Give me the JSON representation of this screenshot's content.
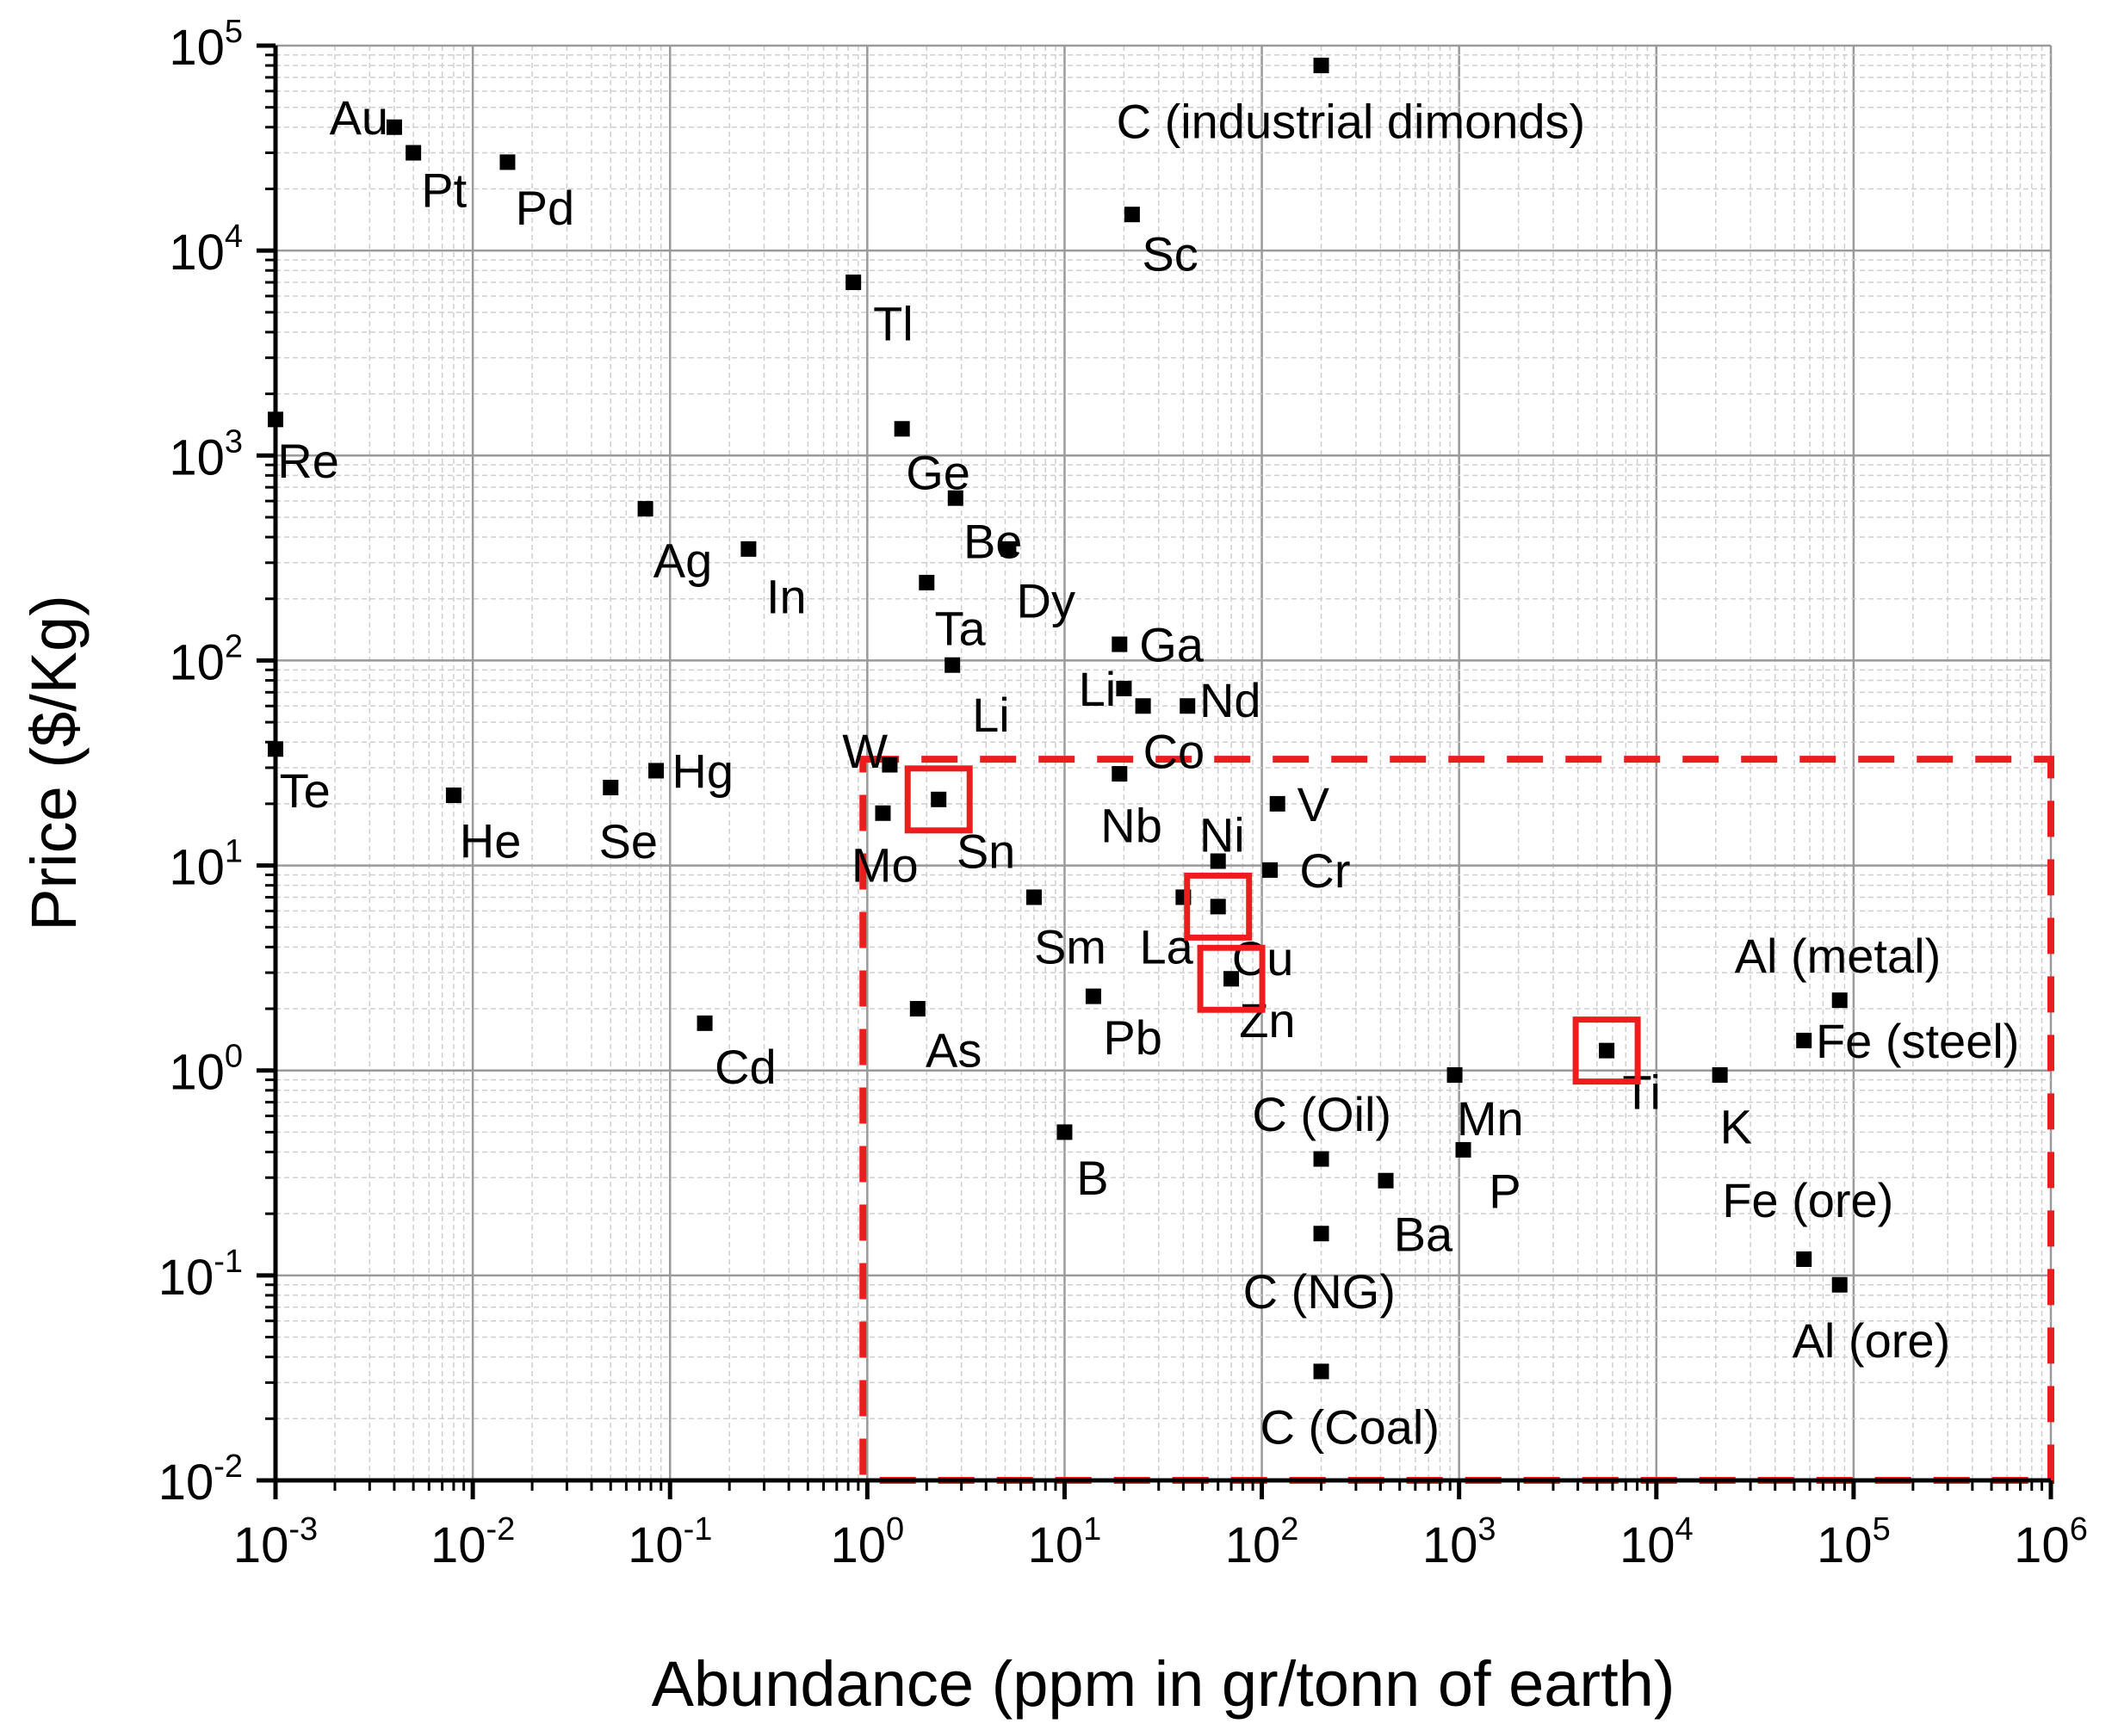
{
  "chart_data": {
    "type": "scatter",
    "title": "",
    "xlabel": "Abundance (ppm in gr/tonn of earth)",
    "ylabel": "Price ($/Kg)",
    "xscale": "log",
    "yscale": "log",
    "xlim": [
      0.001,
      1000000
    ],
    "ylim": [
      0.01,
      100000
    ],
    "grid": true,
    "x_tick_exponents": [
      -3,
      -2,
      -1,
      0,
      1,
      2,
      3,
      4,
      5,
      6
    ],
    "y_tick_exponents": [
      -2,
      -1,
      0,
      1,
      2,
      3,
      4,
      5
    ],
    "tick_base": "10",
    "points": [
      {
        "label": "Au",
        "x": 0.004,
        "y": 40000,
        "anchor": "end",
        "ldx": -0.03,
        "ldy": 0.05
      },
      {
        "label": "Pt",
        "x": 0.005,
        "y": 30000,
        "anchor": "start",
        "ldx": 0.04,
        "ldy": -0.18
      },
      {
        "label": "Pd",
        "x": 0.015,
        "y": 27000,
        "anchor": "start",
        "ldx": 0.04,
        "ldy": -0.22
      },
      {
        "label": "C (industrial dimonds)",
        "x": 200,
        "y": 80000,
        "anchor": "middle",
        "ldx": 0.15,
        "ldy": -0.27
      },
      {
        "label": "Sc",
        "x": 22,
        "y": 15000,
        "anchor": "start",
        "ldx": 0.05,
        "ldy": -0.19
      },
      {
        "label": "Tl",
        "x": 0.85,
        "y": 7000,
        "anchor": "start",
        "ldx": 0.1,
        "ldy": -0.2
      },
      {
        "label": "Re",
        "x": 0.001,
        "y": 1500,
        "anchor": "start",
        "ldx": 0.01,
        "ldy": -0.2
      },
      {
        "label": "Ge",
        "x": 1.5,
        "y": 1350,
        "anchor": "start",
        "ldx": 0.02,
        "ldy": -0.21
      },
      {
        "label": "Be",
        "x": 2.8,
        "y": 620,
        "anchor": "start",
        "ldx": 0.04,
        "ldy": -0.21
      },
      {
        "label": "Ag",
        "x": 0.075,
        "y": 550,
        "anchor": "start",
        "ldx": 0.04,
        "ldy": -0.25
      },
      {
        "label": "Dy",
        "x": 5.2,
        "y": 350,
        "anchor": "start",
        "ldx": 0.04,
        "ldy": -0.25
      },
      {
        "label": "In",
        "x": 0.25,
        "y": 350,
        "anchor": "start",
        "ldx": 0.09,
        "ldy": -0.23
      },
      {
        "label": "Ta",
        "x": 2,
        "y": 240,
        "anchor": "start",
        "ldx": 0.04,
        "ldy": -0.22
      },
      {
        "label": "Ga",
        "x": 19,
        "y": 120,
        "anchor": "start",
        "ldx": 0.1,
        "ldy": 0.0
      },
      {
        "label": "Li",
        "x": 2.7,
        "y": 95,
        "anchor": "start",
        "ldx": 0.1,
        "ldy": -0.24
      },
      {
        "label": "Li",
        "x": 20,
        "y": 73,
        "anchor": "end",
        "ldx": -0.04,
        "ldy": 0.0
      },
      {
        "label": "Nd",
        "x": 42,
        "y": 60,
        "anchor": "start",
        "ldx": 0.06,
        "ldy": 0.03
      },
      {
        "label": "Co",
        "x": 25,
        "y": 60,
        "anchor": "start",
        "ldx": 0.0,
        "ldy": -0.22
      },
      {
        "label": "W",
        "x": 1.3,
        "y": 31,
        "anchor": "end",
        "ldx": -0.01,
        "ldy": 0.07
      },
      {
        "label": "Te",
        "x": 0.001,
        "y": 37,
        "anchor": "start",
        "ldx": 0.02,
        "ldy": -0.2
      },
      {
        "label": "Hg",
        "x": 0.085,
        "y": 29,
        "anchor": "start",
        "ldx": 0.08,
        "ldy": 0.0
      },
      {
        "label": "Nb",
        "x": 19,
        "y": 28,
        "anchor": "middle",
        "ldx": 0.06,
        "ldy": -0.25
      },
      {
        "label": "Se",
        "x": 0.05,
        "y": 24,
        "anchor": "start",
        "ldx": -0.06,
        "ldy": -0.26
      },
      {
        "label": "He",
        "x": 0.008,
        "y": 22,
        "anchor": "start",
        "ldx": 0.03,
        "ldy": -0.22
      },
      {
        "label": "Sn",
        "x": 2.3,
        "y": 21,
        "anchor": "start",
        "ldx": 0.09,
        "ldy": -0.25
      },
      {
        "label": "V",
        "x": 120,
        "y": 20,
        "anchor": "start",
        "ldx": 0.1,
        "ldy": 0.0
      },
      {
        "label": "Mo",
        "x": 1.2,
        "y": 18,
        "anchor": "middle",
        "ldx": 0.01,
        "ldy": -0.25
      },
      {
        "label": "Ni",
        "x": 60,
        "y": 10.5,
        "anchor": "middle",
        "ldx": 0.02,
        "ldy": 0.13
      },
      {
        "label": "Cr",
        "x": 110,
        "y": 9.5,
        "anchor": "start",
        "ldx": 0.15,
        "ldy": 0.0
      },
      {
        "label": "Sm",
        "x": 7,
        "y": 7,
        "anchor": "start",
        "ldx": 0.0,
        "ldy": -0.24
      },
      {
        "label": "La",
        "x": 40,
        "y": 7,
        "anchor": "end",
        "ldx": 0.05,
        "ldy": -0.24
      },
      {
        "label": "Cu",
        "x": 60,
        "y": 6.3,
        "anchor": "start",
        "ldx": 0.07,
        "ldy": -0.25
      },
      {
        "label": "Zn",
        "x": 70,
        "y": 2.8,
        "anchor": "start",
        "ldx": 0.04,
        "ldy": -0.2
      },
      {
        "label": "Pb",
        "x": 14,
        "y": 2.3,
        "anchor": "start",
        "ldx": 0.05,
        "ldy": -0.2
      },
      {
        "label": "As",
        "x": 1.8,
        "y": 2.0,
        "anchor": "start",
        "ldx": 0.04,
        "ldy": -0.2
      },
      {
        "label": "Cd",
        "x": 0.15,
        "y": 1.7,
        "anchor": "start",
        "ldx": 0.05,
        "ldy": -0.21
      },
      {
        "label": "Al (metal)",
        "x": 85000,
        "y": 2.2,
        "anchor": "middle",
        "ldx": -0.01,
        "ldy": 0.22
      },
      {
        "label": "Fe (steel)",
        "x": 56000,
        "y": 1.4,
        "anchor": "start",
        "ldx": 0.06,
        "ldy": 0.0
      },
      {
        "label": "Ti",
        "x": 5600,
        "y": 1.25,
        "anchor": "start",
        "ldx": 0.08,
        "ldy": -0.2
      },
      {
        "label": "Mn",
        "x": 950,
        "y": 0.95,
        "anchor": "start",
        "ldx": 0.01,
        "ldy": -0.21
      },
      {
        "label": "K",
        "x": 21000,
        "y": 0.95,
        "anchor": "start",
        "ldx": 0.0,
        "ldy": -0.25
      },
      {
        "label": "C (Oil)",
        "x": 200,
        "y": 0.37,
        "anchor": "start",
        "ldx": -0.35,
        "ldy": 0.22
      },
      {
        "label": "B",
        "x": 10,
        "y": 0.5,
        "anchor": "start",
        "ldx": 0.06,
        "ldy": -0.22
      },
      {
        "label": "P",
        "x": 1050,
        "y": 0.41,
        "anchor": "start",
        "ldx": 0.13,
        "ldy": -0.2
      },
      {
        "label": "Ba",
        "x": 425,
        "y": 0.29,
        "anchor": "start",
        "ldx": 0.04,
        "ldy": -0.26
      },
      {
        "label": "C (NG)",
        "x": 200,
        "y": 0.16,
        "anchor": "middle",
        "ldx": -0.01,
        "ldy": -0.28
      },
      {
        "label": "Fe (ore)",
        "x": 56000,
        "y": 0.12,
        "anchor": "middle",
        "ldx": 0.02,
        "ldy": 0.29
      },
      {
        "label": "Al (ore)",
        "x": 85000,
        "y": 0.09,
        "anchor": "middle",
        "ldx": 0.16,
        "ldy": -0.27
      },
      {
        "label": "C (Coal)",
        "x": 200,
        "y": 0.034,
        "anchor": "start",
        "ldx": -0.31,
        "ldy": -0.27
      }
    ],
    "highlight_region": {
      "x": [
        0.95,
        1000000
      ],
      "y": [
        0.01,
        33
      ]
    },
    "highlighted_points": [
      "Sn",
      "Cu",
      "Zn",
      "Ti"
    ]
  }
}
